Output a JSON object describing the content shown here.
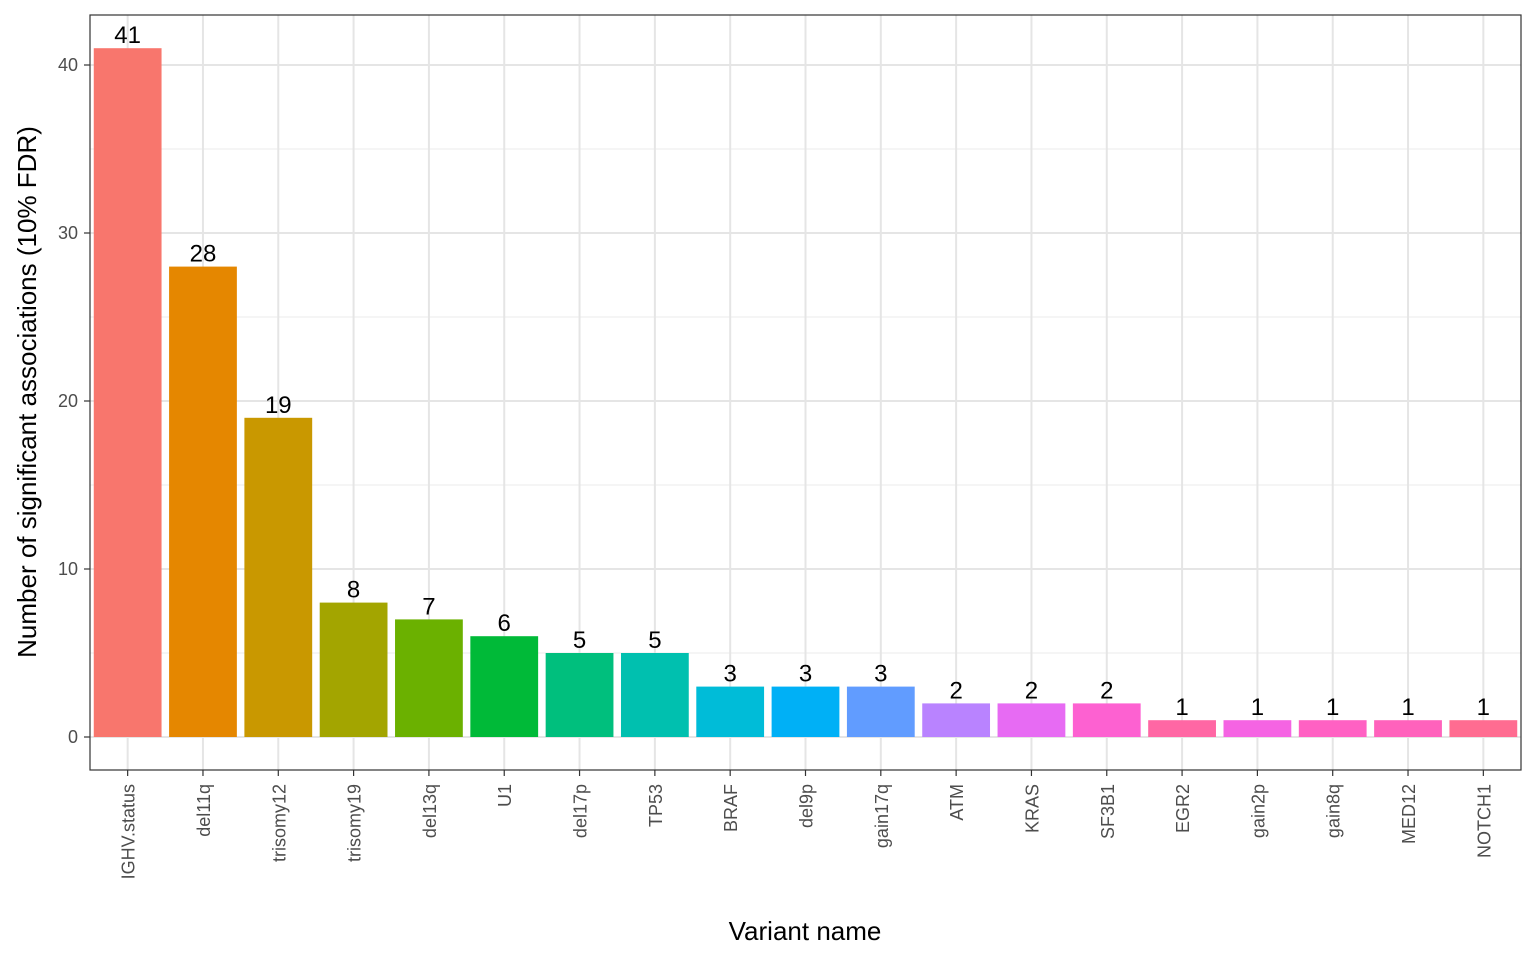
{
  "chart_data": {
    "type": "bar",
    "title": "",
    "xlabel": "Variant name",
    "ylabel": "Number of significant associations (10% FDR)",
    "ylim": [
      0,
      42
    ],
    "yticks": [
      0,
      10,
      20,
      30,
      40
    ],
    "grid": true,
    "legend": "none",
    "categories": [
      "IGHV.status",
      "del11q",
      "trisomy12",
      "trisomy19",
      "del13q",
      "U1",
      "del17p",
      "TP53",
      "BRAF",
      "del9p",
      "gain17q",
      "ATM",
      "KRAS",
      "SF3B1",
      "EGR2",
      "gain2p",
      "gain8q",
      "MED12",
      "NOTCH1"
    ],
    "values": [
      41,
      28,
      19,
      8,
      7,
      6,
      5,
      5,
      3,
      3,
      3,
      2,
      2,
      2,
      1,
      1,
      1,
      1,
      1
    ],
    "colors": [
      "#F8766D",
      "#E58700",
      "#C99800",
      "#A3A500",
      "#6BB100",
      "#00BA38",
      "#00BF7D",
      "#00C0AF",
      "#00BCD8",
      "#00B0F6",
      "#619CFF",
      "#B983FF",
      "#E76BF3",
      "#FD61D1",
      "#FF67A4",
      "#F564E3",
      "#FF61C3",
      "#FF62BC",
      "#FF6C91"
    ],
    "data_labels": [
      "41",
      "28",
      "19",
      "8",
      "7",
      "6",
      "5",
      "5",
      "3",
      "3",
      "3",
      "2",
      "2",
      "2",
      "1",
      "1",
      "1",
      "1",
      "1"
    ]
  }
}
